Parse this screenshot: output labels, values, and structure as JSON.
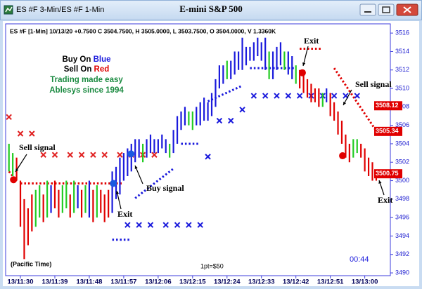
{
  "window_title": "ES #F 3-Min/ES #F 1-Min",
  "chart_title": "E-mini S&P 500",
  "header": "ES #F [1-Min] 10/13/20 +0.7500 C 3504.7500, H 3505.0000, L 3503.7500, O 3504.0000, V 1.3360K",
  "legend": {
    "buy_label": "Buy On",
    "buy_color_name": "Blue",
    "sell_label": "Sell On",
    "sell_color_name": "Red",
    "slogan": "Trading made easy",
    "company": "Ablesys since 1994"
  },
  "time_zone": "(Pacific Time)",
  "point_value": "1pt=$50",
  "countdown": "00:44",
  "annotations": [
    "Sell signal",
    "Buy signal",
    "Exit",
    "Exit",
    "Sell signal",
    "Exit"
  ],
  "chart_data": {
    "type": "range-bars",
    "categories": [
      null,
      null,
      null,
      "13/11:30",
      null,
      null,
      null,
      null,
      null,
      null,
      null,
      null,
      "13/11:39",
      null,
      null,
      null,
      null,
      null,
      null,
      null,
      null,
      "13/11:48",
      null,
      null,
      null,
      null,
      null,
      null,
      null,
      null,
      "13/11:57",
      null,
      null,
      null,
      null,
      null,
      null,
      null,
      null,
      "13/12:06",
      null,
      null,
      null,
      null,
      null,
      null,
      null,
      null,
      "13/12:15",
      null,
      null,
      null,
      null,
      null,
      null,
      null,
      null,
      "13/12:24",
      null,
      null,
      null,
      null,
      null,
      null,
      null,
      null,
      "13/12:33",
      null,
      null,
      null,
      null,
      null,
      null,
      null,
      null,
      "13/12:42",
      null,
      null,
      null,
      null,
      null,
      null,
      null,
      null,
      "13/12:51",
      null,
      null,
      null,
      null,
      null,
      null,
      null,
      null,
      "13/13:00",
      null,
      null,
      null
    ],
    "low": [
      3501,
      3500.5,
      3500,
      3495,
      3491.5,
      3493,
      3494.5,
      3495,
      3496,
      3495.5,
      3496,
      3496.5,
      3497,
      3496,
      3496.5,
      3497,
      3496,
      3496.5,
      3497,
      3496,
      3496.5,
      3496,
      3495.5,
      3496,
      3496.5,
      3495.5,
      3496,
      3496.5,
      3498,
      3498.5,
      3500,
      3500.5,
      3501,
      3502,
      3502.5,
      3502,
      3502.5,
      3503,
      3503,
      3503,
      3503.5,
      3503,
      3502.5,
      3503,
      3504,
      3505.5,
      3506,
      3506,
      3505.5,
      3506,
      3506,
      3506.5,
      3506.5,
      3507,
      3508,
      3510,
      3510.5,
      3511,
      3511,
      3511.5,
      3512,
      3512,
      3512.5,
      3513,
      3513,
      3513.5,
      3513,
      3512,
      3511,
      3511,
      3512,
      3512.5,
      3512,
      3511.5,
      3511,
      3510.5,
      3510,
      3509.5,
      3509,
      3508.5,
      3508.5,
      3508,
      3508,
      3508.5,
      3507,
      3506.5,
      3505,
      3504,
      3502.5,
      3502,
      3502.5,
      3503,
      3502.5,
      3501,
      3500.5,
      3500,
      3500
    ],
    "high": [
      3504,
      3503,
      3502.5,
      3500,
      3498,
      3497,
      3498.5,
      3499,
      3499.5,
      3498.5,
      3500,
      3499.5,
      3500,
      3499,
      3499.5,
      3500,
      3498.5,
      3500,
      3499.5,
      3499,
      3499.5,
      3500,
      3499,
      3499.5,
      3499,
      3498.5,
      3499,
      3501,
      3501.5,
      3502.5,
      3503,
      3503.5,
      3504,
      3504.5,
      3504.5,
      3504,
      3504.5,
      3505,
      3504.5,
      3504.5,
      3505,
      3504.5,
      3504,
      3505.5,
      3507,
      3507.5,
      3508,
      3507.5,
      3507.5,
      3508,
      3508.5,
      3509,
      3508.5,
      3509.5,
      3511,
      3512.5,
      3512.5,
      3513,
      3513,
      3514,
      3514,
      3515.5,
      3514.5,
      3514.5,
      3515,
      3515.5,
      3515,
      3515.5,
      3514,
      3514,
      3514.5,
      3515,
      3514,
      3514,
      3513.5,
      3512.5,
      3512,
      3511.5,
      3511,
      3510.5,
      3510,
      3510,
      3509.5,
      3510,
      3509.5,
      3508.5,
      3507.5,
      3506.5,
      3505,
      3504,
      3504.5,
      3504.5,
      3504,
      3503.5,
      3502.5,
      3502,
      3501
    ],
    "bar_colors": "ggrrrrrggrgbrrggrgbrgbrgrrrbbbbbbbbgbbbbbbgbbbbggbbbbbbbbgbbbbbbbbbbgbbbgbbgrrrrrrgbrrrrrrggrrrrr",
    "palette": {
      "b": "#1a1adc",
      "g": "#22cc22",
      "r": "#e00000"
    },
    "stop_lines": [
      {
        "color": "#e00000",
        "from": 0,
        "to": 2,
        "start": 3501,
        "end": 3500
      },
      {
        "color": "#e00000",
        "from": 3,
        "to": 30,
        "start": 3499.7,
        "end": 3499.7
      },
      {
        "color": "#e00000",
        "from": 76,
        "to": 82,
        "start": 3514.3,
        "end": 3514.3
      },
      {
        "color": "#e00000",
        "from": 85,
        "to": 96,
        "start": 3512.2,
        "end": 3505.4
      },
      {
        "color": "#1a1adc",
        "from": 27,
        "to": 32,
        "start": 3493.6,
        "end": 3493.6
      },
      {
        "color": "#1a1adc",
        "from": 33,
        "to": 43,
        "start": 3498.1,
        "end": 3501.3
      },
      {
        "color": "#1a1adc",
        "from": 45,
        "to": 50,
        "start": 3504,
        "end": 3504
      },
      {
        "color": "#1a1adc",
        "from": 52,
        "to": 61,
        "start": 3508.6,
        "end": 3510.3
      },
      {
        "color": "#1a1adc",
        "from": 63,
        "to": 75,
        "start": 3512.2,
        "end": 3512.2
      }
    ],
    "markers": [
      {
        "color": "#e02020",
        "x": [
          0,
          3,
          6,
          9,
          12,
          16,
          19,
          22,
          25,
          29,
          32,
          35,
          38
        ],
        "values": [
          3506.9,
          3505.1,
          3505.1,
          3502.8,
          3502.8,
          3502.8,
          3502.8,
          3502.8,
          3502.8,
          3502.8,
          3502.8,
          3502.8,
          3502.8
        ]
      },
      {
        "color": "#1a1adc",
        "x": [
          31,
          34,
          37,
          41,
          44,
          47,
          50,
          52,
          55,
          58,
          61,
          64,
          67,
          70,
          73,
          76,
          79,
          82,
          85,
          88,
          91
        ],
        "values": [
          3495.2,
          3495.2,
          3495.2,
          3495.2,
          3495.2,
          3495.2,
          3495.2,
          3502.6,
          3506.5,
          3506.5,
          3507.7,
          3509.2,
          3509.2,
          3509.2,
          3509.2,
          3509.2,
          3509.2,
          3509.2,
          3509.2,
          3509.2,
          3509.2
        ]
      }
    ],
    "signals": [
      {
        "color": "#e00000",
        "x": 1.2,
        "value": 3500.1
      },
      {
        "color": "#1a5ae0",
        "x": 27.3,
        "value": 3499.7
      },
      {
        "color": "#1a5ae0",
        "x": 31.9,
        "value": 3502.9
      },
      {
        "color": "#e00000",
        "x": 76.7,
        "value": 3511.7
      },
      {
        "color": "#e00000",
        "x": 87.2,
        "value": 3502.7
      }
    ],
    "price_flags": [
      3508.12,
      3505.34,
      3500.75
    ],
    "ylim": [
      3489.7,
      3517
    ],
    "yticks": [
      3490,
      3492,
      3494,
      3496,
      3498,
      3500,
      3502,
      3504,
      3506,
      3508,
      3510,
      3512,
      3514,
      3516
    ]
  }
}
